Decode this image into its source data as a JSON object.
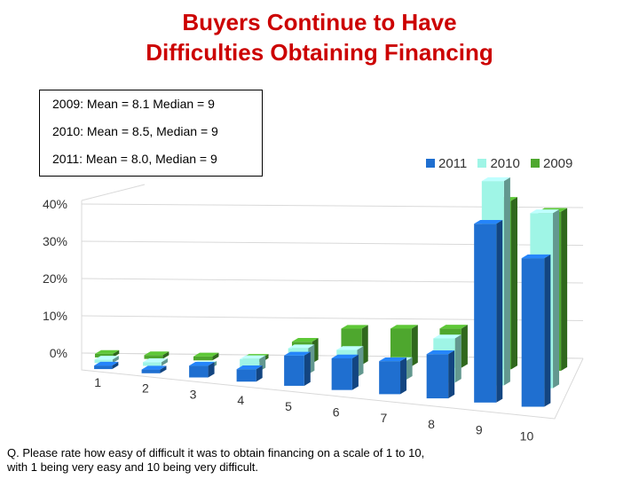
{
  "title_line1": "Buyers Continue to Have",
  "title_line2": "Difficulties Obtaining Financing",
  "stats": [
    "2009: Mean = 8.1  Median = 9",
    "2010: Mean = 8.5, Median = 9",
    "2011: Mean = 8.0, Median = 9"
  ],
  "footnote_line1": "Q. Please rate how easy of difficult it was to obtain financing on a scale of 1 to 10,",
  "footnote_line2": "with 1 being very easy and 10 being very difficult.",
  "colors": {
    "2011": "#1f6fd0",
    "2010": "#9ff5e6",
    "2009": "#4ea72e"
  },
  "chart_data": {
    "type": "bar",
    "subtype": "3d-clustered",
    "categories": [
      "1",
      "2",
      "3",
      "4",
      "5",
      "6",
      "7",
      "8",
      "9",
      "10"
    ],
    "yticks": [
      "0%",
      "10%",
      "20%",
      "30%",
      "40%"
    ],
    "ylim": [
      0,
      40
    ],
    "series": [
      {
        "name": "2011",
        "values": [
          1,
          1,
          3,
          3,
          7,
          7,
          7,
          9,
          35,
          28
        ]
      },
      {
        "name": "2010",
        "values": [
          1,
          1,
          1,
          3,
          6,
          6,
          4,
          9,
          40,
          33
        ]
      },
      {
        "name": "2009",
        "values": [
          1,
          1,
          1,
          1,
          5,
          8,
          8,
          8,
          33,
          30
        ]
      }
    ],
    "legend_position": "top-right",
    "grid": true
  }
}
